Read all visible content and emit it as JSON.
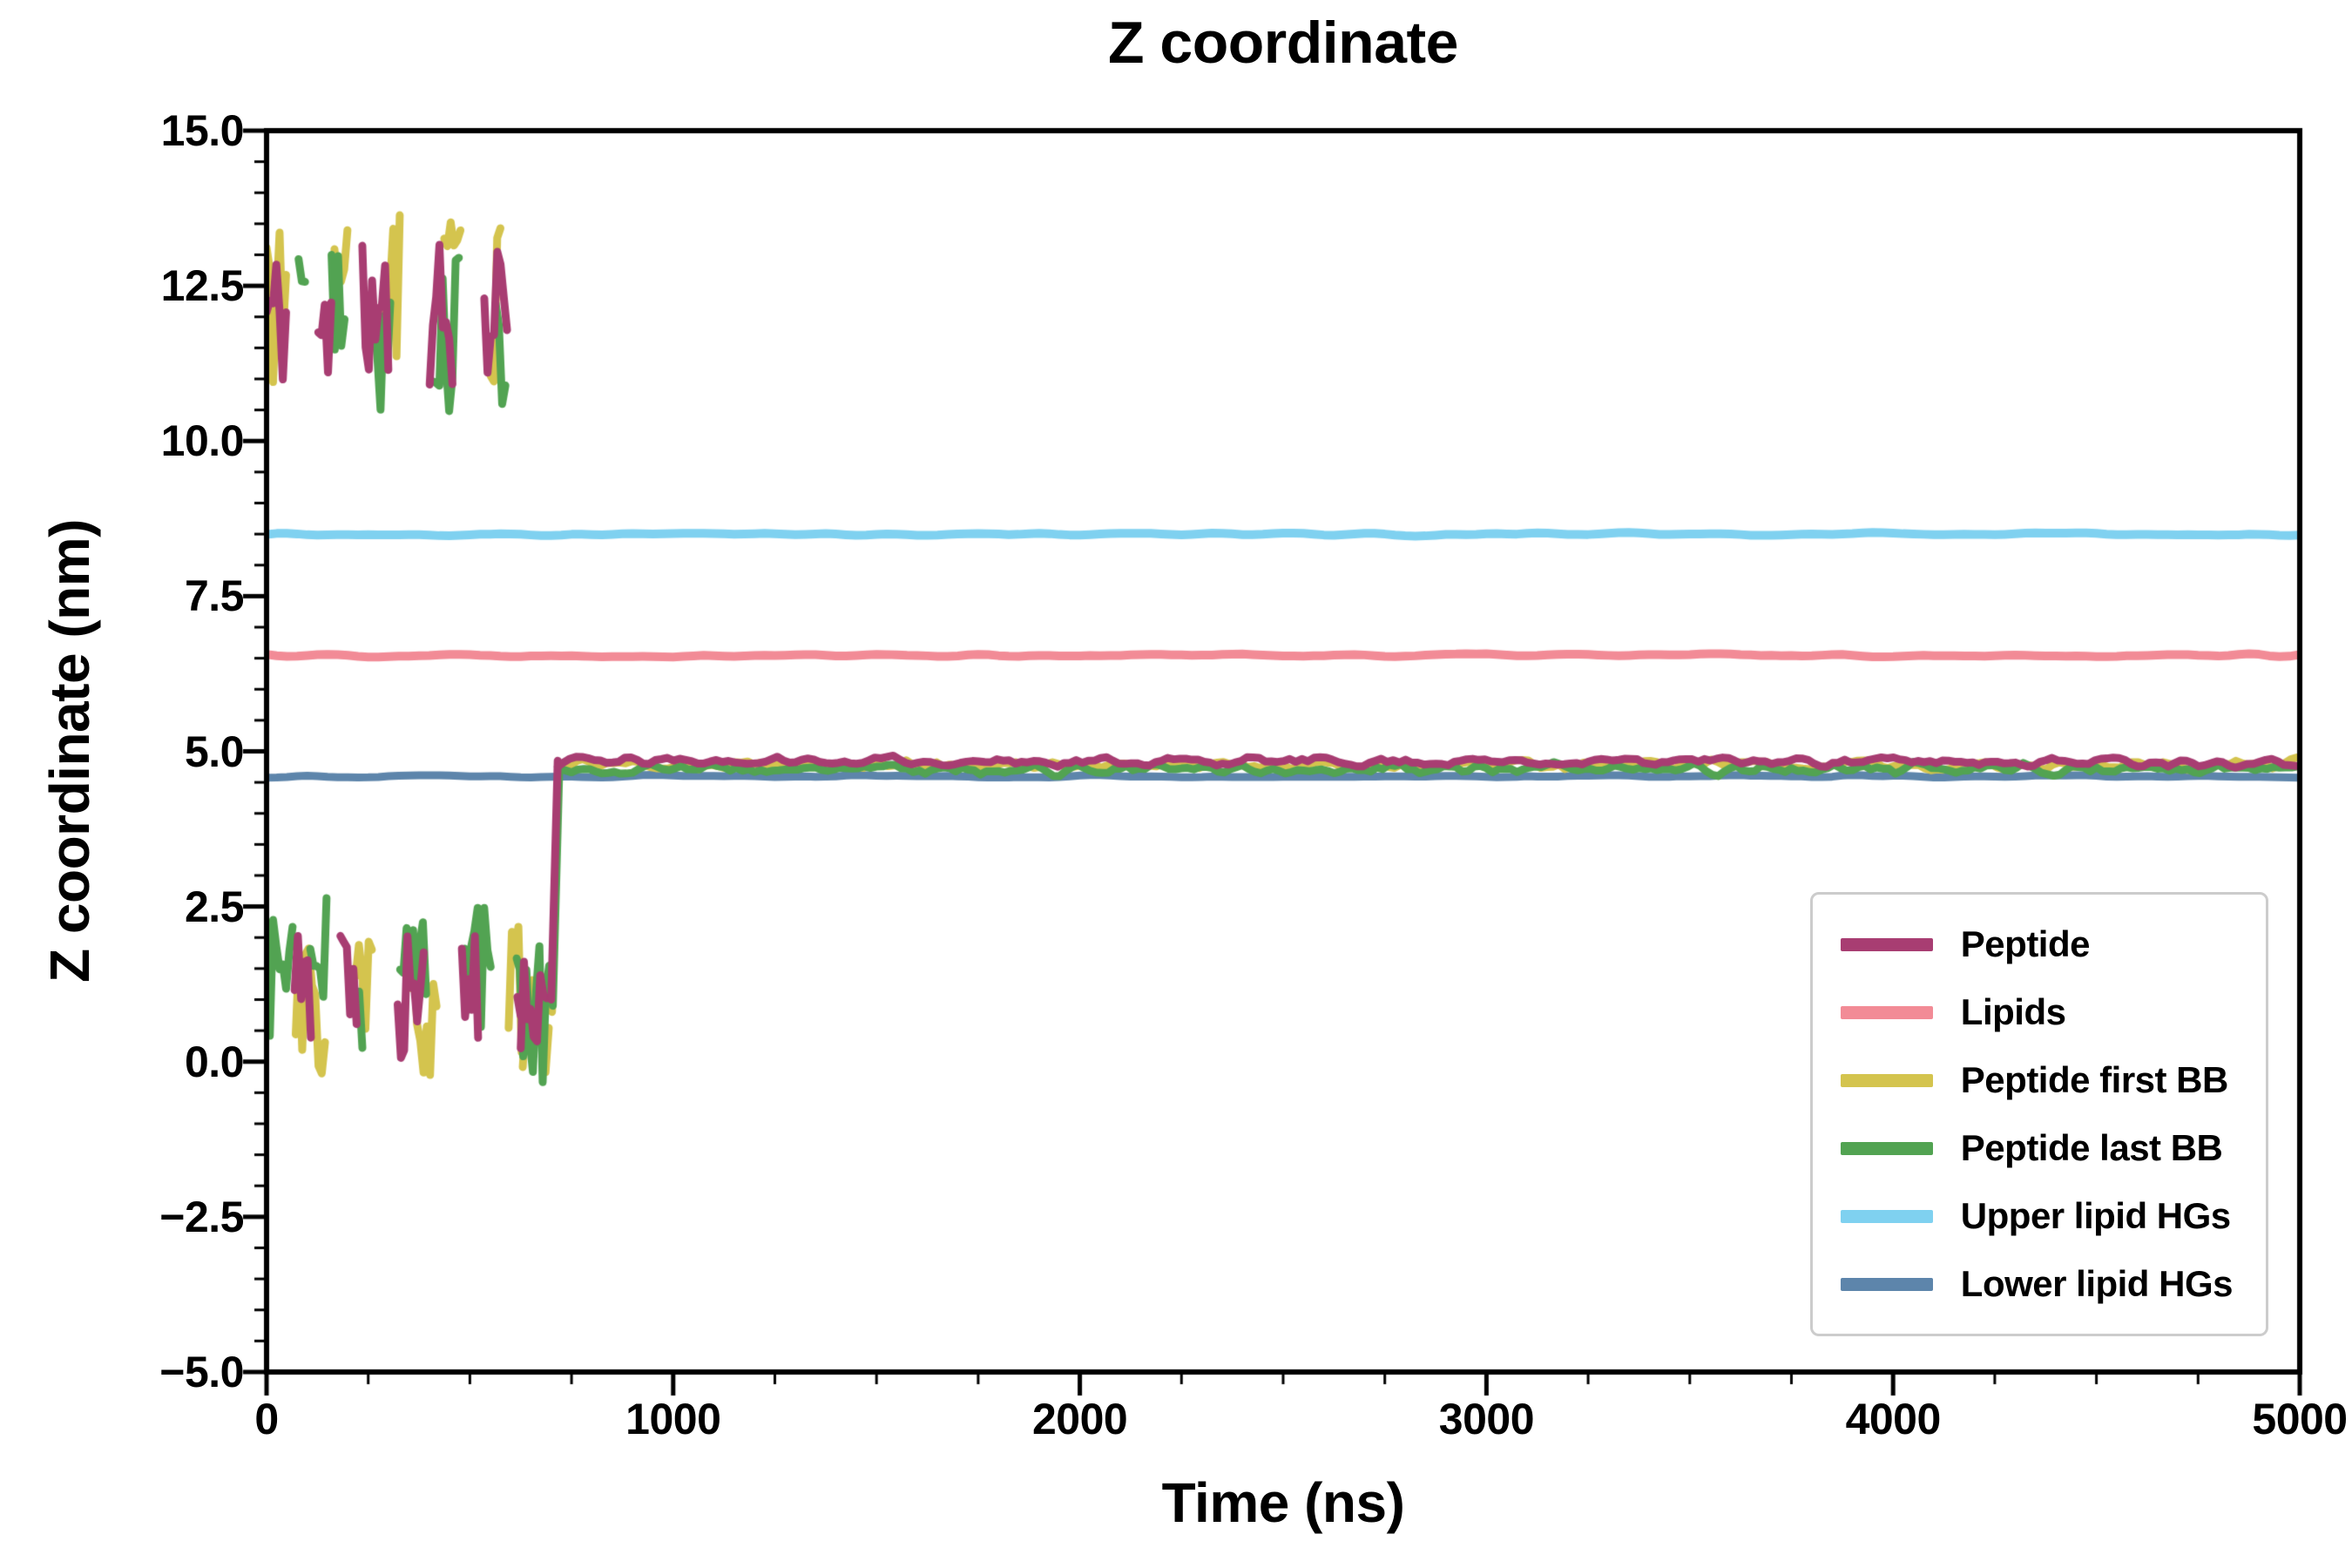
{
  "chart_data": {
    "type": "line",
    "title": "Z coordinate",
    "xlabel": "Time (ns)",
    "ylabel": "Z coordinate (nm)",
    "xlim": [
      0,
      5000
    ],
    "ylim": [
      -5.0,
      15.0
    ],
    "xticks": [
      0,
      1000,
      2000,
      3000,
      4000,
      5000
    ],
    "xtick_labels": [
      "0",
      "1000",
      "2000",
      "3000",
      "4000",
      "5000"
    ],
    "yticks": [
      -5.0,
      -2.5,
      0.0,
      2.5,
      5.0,
      7.5,
      10.0,
      12.5,
      15.0
    ],
    "ytick_labels": [
      "−5.0",
      "−2.5",
      "0.0",
      "2.5",
      "5.0",
      "7.5",
      "10.0",
      "12.5",
      "15.0"
    ],
    "x_minor_step": 250,
    "y_minor_step": 0.5,
    "grid": false,
    "legend_position": "lower right",
    "style": {
      "background": "#ffffff",
      "spine_color": "#000000",
      "tick_color": "#000000",
      "text_color": "#000000",
      "legend_border_color": "#cccccc"
    },
    "series": [
      {
        "name": "Peptide",
        "color": "#a83d72",
        "linewidth": 9,
        "zorder": 6,
        "seed": 11,
        "summary": "Noisy 0–650 ns alternating between ≈12.0±1.2 nm and ≈1.2±1.2 nm (periodic-image split), sharp jump at ≈700 ns from ≈1.0 to ≈4.85 nm, then steady ≈4.84±0.11 nm until 5000 ns",
        "phases": [
          {
            "kind": "blocks",
            "x0": 0,
            "x1": 625,
            "step": 8,
            "start": "top",
            "top": {
              "base": 12.0,
              "amp": 1.2
            },
            "bottom": {
              "base": 1.2,
              "amp": 1.2
            },
            "block": [
              20,
              80
            ],
            "gap": [
              8,
              25
            ]
          },
          {
            "kind": "line",
            "x0": 625,
            "x1": 694,
            "step": 8,
            "base": 1.0,
            "amp": 0.8
          },
          {
            "kind": "ramp",
            "x0": 700,
            "x1": 716,
            "from": 1.0,
            "to": 4.85
          },
          {
            "kind": "line",
            "x0": 716,
            "x1": 5000,
            "step": 15,
            "base": 4.84,
            "amp": 0.11,
            "smooth": 1
          }
        ]
      },
      {
        "name": "Lipids",
        "color": "#f28b96",
        "linewidth": 10,
        "zorder": 2,
        "seed": 22,
        "summary": "Flat line at ≈6.55±0.05 nm across full 0–5000 ns range",
        "phases": [
          {
            "kind": "line",
            "x0": 0,
            "x1": 5000,
            "step": 25,
            "base": 6.55,
            "amp": 0.045,
            "smooth": 2
          }
        ]
      },
      {
        "name": "Peptide first BB",
        "color": "#d4c44e",
        "linewidth": 9,
        "zorder": 4,
        "seed": 33,
        "summary": "Noisy 0–650 ns alternating between ≈12.4±1.5 nm (peaks ≈14.2) and ≈0.9±1.3 nm, transition at ≈700 ns, then steady ≈4.78±0.12 nm until 5000 ns",
        "phases": [
          {
            "kind": "blocks",
            "x0": 0,
            "x1": 630,
            "step": 8,
            "start": "top",
            "top": {
              "base": 12.4,
              "amp": 1.5
            },
            "bottom": {
              "base": 0.9,
              "amp": 1.3
            },
            "block": [
              20,
              75
            ],
            "gap": [
              8,
              25
            ]
          },
          {
            "kind": "line",
            "x0": 630,
            "x1": 696,
            "step": 8,
            "base": 0.7,
            "amp": 0.9
          },
          {
            "kind": "ramp",
            "x0": 702,
            "x1": 718,
            "from": 0.8,
            "to": 4.8
          },
          {
            "kind": "line",
            "x0": 718,
            "x1": 5000,
            "step": 15,
            "base": 4.78,
            "amp": 0.12,
            "smooth": 1
          }
        ]
      },
      {
        "name": "Peptide last BB",
        "color": "#52a352",
        "linewidth": 9,
        "zorder": 5,
        "seed": 44,
        "summary": "Noisy 0–650 ns alternating between ≈11.7±1.3 nm and ≈1.5±1.3 nm (dip ≈−0.6 near 650 ns), transition at ≈700 ns, then steady ≈4.71±0.13 nm until 5000 ns",
        "phases": [
          {
            "kind": "blocks",
            "x0": 0,
            "x1": 615,
            "step": 8,
            "start": "bottom",
            "top": {
              "base": 11.7,
              "amp": 1.3
            },
            "bottom": {
              "base": 1.5,
              "amp": 1.3
            },
            "block": [
              20,
              75
            ],
            "gap": [
              8,
              25
            ]
          },
          {
            "kind": "line",
            "x0": 615,
            "x1": 698,
            "step": 8,
            "base": 0.8,
            "amp": 1.2
          },
          {
            "kind": "ramp",
            "x0": 704,
            "x1": 720,
            "from": 0.9,
            "to": 4.75
          },
          {
            "kind": "line",
            "x0": 720,
            "x1": 5000,
            "step": 15,
            "base": 4.71,
            "amp": 0.13,
            "smooth": 1
          }
        ]
      },
      {
        "name": "Upper lipid HGs",
        "color": "#7fd1f0",
        "linewidth": 10,
        "zorder": 1,
        "seed": 55,
        "summary": "Flat line at ≈8.50±0.04 nm across full 0–5000 ns range",
        "phases": [
          {
            "kind": "line",
            "x0": 0,
            "x1": 5000,
            "step": 25,
            "base": 8.5,
            "amp": 0.04,
            "smooth": 2
          }
        ]
      },
      {
        "name": "Lower lipid HGs",
        "color": "#5d85ab",
        "linewidth": 9,
        "zorder": 3,
        "seed": 66,
        "summary": "Flat line at ≈4.60±0.04 nm across full 0–5000 ns range",
        "phases": [
          {
            "kind": "line",
            "x0": 0,
            "x1": 5000,
            "step": 25,
            "base": 4.6,
            "amp": 0.035,
            "smooth": 2
          }
        ]
      }
    ]
  }
}
